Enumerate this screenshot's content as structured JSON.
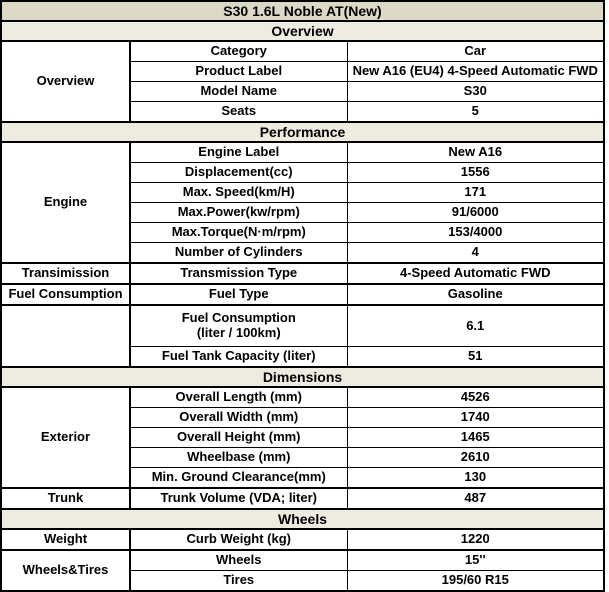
{
  "title": "S30 1.6L Noble AT(New)",
  "colors": {
    "title_bg": "#DCD8C5",
    "band_bg": "#EEECE1",
    "cell_bg": "#FFFFFF",
    "border": "#000000",
    "text": "#000000"
  },
  "sections": [
    {
      "band": "Overview",
      "groups": [
        {
          "label": "Overview",
          "rows": [
            {
              "name": "Category",
              "value": "Car"
            },
            {
              "name": "Product Label",
              "value": "New A16 (EU4) 4-Speed Automatic FWD"
            },
            {
              "name": "Model Name",
              "value": "S30"
            },
            {
              "name": "Seats",
              "value": "5"
            }
          ]
        }
      ]
    },
    {
      "band": "Performance",
      "groups": [
        {
          "label": "Engine",
          "rows": [
            {
              "name": "Engine Label",
              "value": "New A16"
            },
            {
              "name": "Displacement(cc)",
              "value": "1556"
            },
            {
              "name": "Max. Speed(km/H)",
              "value": "171"
            },
            {
              "name": "Max.Power(kw/rpm)",
              "value": "91/6000"
            },
            {
              "name": "Max.Torque(N·m/rpm)",
              "value": "153/4000"
            },
            {
              "name": "Number of Cylinders",
              "value": "4"
            }
          ]
        },
        {
          "label": "Transimission",
          "rows": [
            {
              "name": "Transmission Type",
              "value": "4-Speed Automatic FWD"
            }
          ]
        },
        {
          "label": "Fuel Consumption",
          "rows": [
            {
              "name": "Fuel Type",
              "value": "Gasoline"
            }
          ]
        },
        {
          "label": "",
          "rows": [
            {
              "name": "Fuel Consumption\n(liter / 100km)",
              "value": "6.1"
            },
            {
              "name": "Fuel Tank Capacity (liter)",
              "value": "51"
            }
          ]
        }
      ]
    },
    {
      "band": "Dimensions",
      "groups": [
        {
          "label": "Exterior",
          "rows": [
            {
              "name": "Overall Length (mm)",
              "value": "4526"
            },
            {
              "name": "Overall Width (mm)",
              "value": "1740"
            },
            {
              "name": "Overall Height (mm)",
              "value": "1465"
            },
            {
              "name": "Wheelbase (mm)",
              "value": "2610"
            },
            {
              "name": "Min. Ground Clearance(mm)",
              "value": "130"
            }
          ]
        },
        {
          "label": "Trunk",
          "rows": [
            {
              "name": "Trunk Volume (VDA; liter)",
              "value": "487"
            }
          ]
        }
      ]
    },
    {
      "band": "Wheels",
      "groups": [
        {
          "label": "Weight",
          "rows": [
            {
              "name": "Curb Weight (kg)",
              "value": "1220"
            }
          ]
        },
        {
          "label": "Wheels&Tires",
          "rows": [
            {
              "name": "Wheels",
              "value": "15''"
            },
            {
              "name": "Tires",
              "value": "195/60 R15"
            }
          ]
        }
      ]
    }
  ]
}
